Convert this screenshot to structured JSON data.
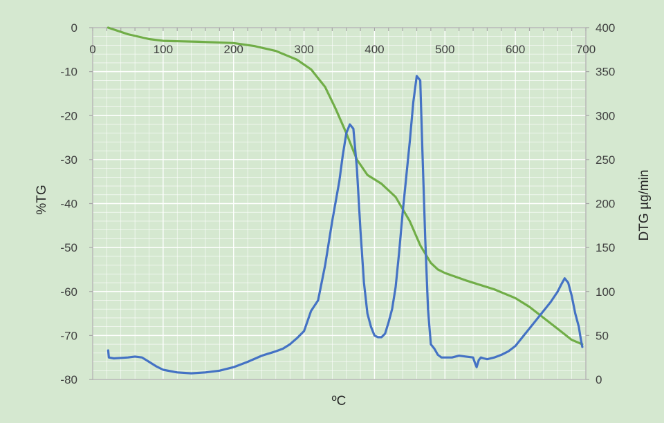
{
  "chart_data": {
    "type": "line",
    "xlabel": "ºC",
    "ylabel_left": "%TG",
    "ylabel_right": "DTG µg/min",
    "xlim": [
      0,
      700
    ],
    "ylim_left": [
      -80,
      0
    ],
    "ylim_right": [
      0,
      400
    ],
    "x_ticks": [
      "0",
      "100",
      "200",
      "300",
      "400",
      "500",
      "600",
      "700"
    ],
    "y_left_ticks": [
      "0",
      "-10",
      "-20",
      "-30",
      "-40",
      "-50",
      "-60",
      "-70",
      "-80"
    ],
    "y_right_ticks": [
      "400",
      "350",
      "300",
      "250",
      "200",
      "150",
      "100",
      "50",
      "0"
    ],
    "grid": true,
    "legend": "none",
    "series": [
      {
        "axis": "left",
        "color": "#70ad47",
        "x": [
          22,
          50,
          80,
          100,
          150,
          200,
          230,
          260,
          290,
          310,
          330,
          345,
          360,
          375,
          390,
          410,
          430,
          450,
          465,
          480,
          490,
          500,
          530,
          570,
          600,
          620,
          640,
          660,
          680,
          695
        ],
        "y": [
          0,
          -1.5,
          -2.6,
          -3,
          -3.2,
          -3.5,
          -4.2,
          -5.3,
          -7.3,
          -9.5,
          -13.5,
          -18.5,
          -24,
          -30,
          -33.5,
          -35.5,
          -38.5,
          -44,
          -49.5,
          -53.5,
          -55,
          -55.8,
          -57.5,
          -59.5,
          -61.5,
          -63.5,
          -66,
          -68.5,
          -71,
          -72
        ]
      },
      {
        "axis": "right",
        "color": "#4472c4",
        "x": [
          22,
          23,
          30,
          50,
          60,
          70,
          80,
          90,
          100,
          120,
          140,
          160,
          180,
          200,
          220,
          240,
          260,
          270,
          280,
          290,
          300,
          310,
          320,
          325,
          330,
          340,
          350,
          355,
          360,
          365,
          370,
          375,
          380,
          385,
          390,
          395,
          400,
          405,
          410,
          415,
          420,
          425,
          430,
          435,
          440,
          445,
          450,
          455,
          460,
          465,
          468,
          472,
          476,
          480,
          485,
          490,
          495,
          500,
          510,
          520,
          530,
          540,
          542,
          545,
          548,
          551,
          555,
          560,
          570,
          580,
          590,
          600,
          610,
          620,
          630,
          640,
          650,
          660,
          665,
          670,
          675,
          680,
          685,
          690,
          693,
          695
        ],
        "y": [
          33,
          25,
          24,
          25,
          26,
          25,
          20,
          15,
          11,
          8,
          7,
          8,
          10,
          14,
          20,
          27,
          32,
          35,
          40,
          47,
          55,
          78,
          90,
          110,
          130,
          180,
          225,
          255,
          280,
          290,
          285,
          240,
          170,
          110,
          75,
          60,
          50,
          48,
          48,
          52,
          65,
          80,
          105,
          145,
          190,
          230,
          270,
          315,
          345,
          340,
          260,
          160,
          80,
          40,
          35,
          28,
          25,
          25,
          25,
          27,
          26,
          25,
          20,
          14,
          22,
          25,
          24,
          23,
          25,
          28,
          32,
          38,
          48,
          58,
          68,
          78,
          88,
          100,
          108,
          115,
          110,
          95,
          75,
          60,
          45,
          37
        ]
      }
    ]
  }
}
